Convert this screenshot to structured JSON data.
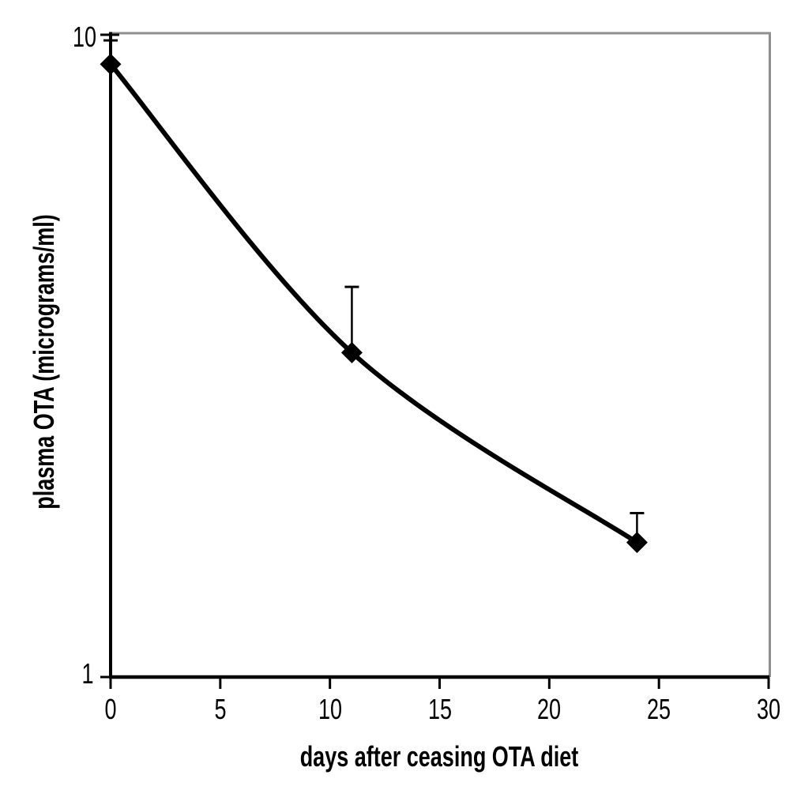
{
  "chart_data": {
    "type": "line",
    "title": "",
    "xlabel": "days after ceasing OTA diet",
    "ylabel": "plasma OTA (micrograms/ml)",
    "x_axis": {
      "min": 0,
      "max": 30,
      "scale": "linear"
    },
    "y_axis": {
      "min": 1,
      "max": 10,
      "scale": "log"
    },
    "x_ticks": [
      {
        "value": 0,
        "label": "0"
      },
      {
        "value": 5,
        "label": "5"
      },
      {
        "value": 10,
        "label": "10"
      },
      {
        "value": 15,
        "label": "15"
      },
      {
        "value": 20,
        "label": "20"
      },
      {
        "value": 25,
        "label": "25"
      },
      {
        "value": 30,
        "label": "30"
      }
    ],
    "y_ticks": [
      {
        "value": 10,
        "label": "10"
      },
      {
        "value": 1,
        "label": "1"
      }
    ],
    "grid": "off",
    "legend": "none",
    "series": [
      {
        "name": "plasma OTA",
        "marker": "filled-diamond",
        "line_style": "smooth-bold",
        "points": [
          {
            "x": 0,
            "y": 9.0,
            "err_top": 9.8
          },
          {
            "x": 11,
            "y": 3.2,
            "err_top": 4.05
          },
          {
            "x": 24,
            "y": 1.62,
            "err_top": 1.8
          }
        ]
      }
    ],
    "colors": {
      "line": "#000000",
      "marker": "#000000",
      "axis": "#000000",
      "plot_border": "#8f8f8f",
      "text": "#000000",
      "background": "#ffffff"
    }
  }
}
